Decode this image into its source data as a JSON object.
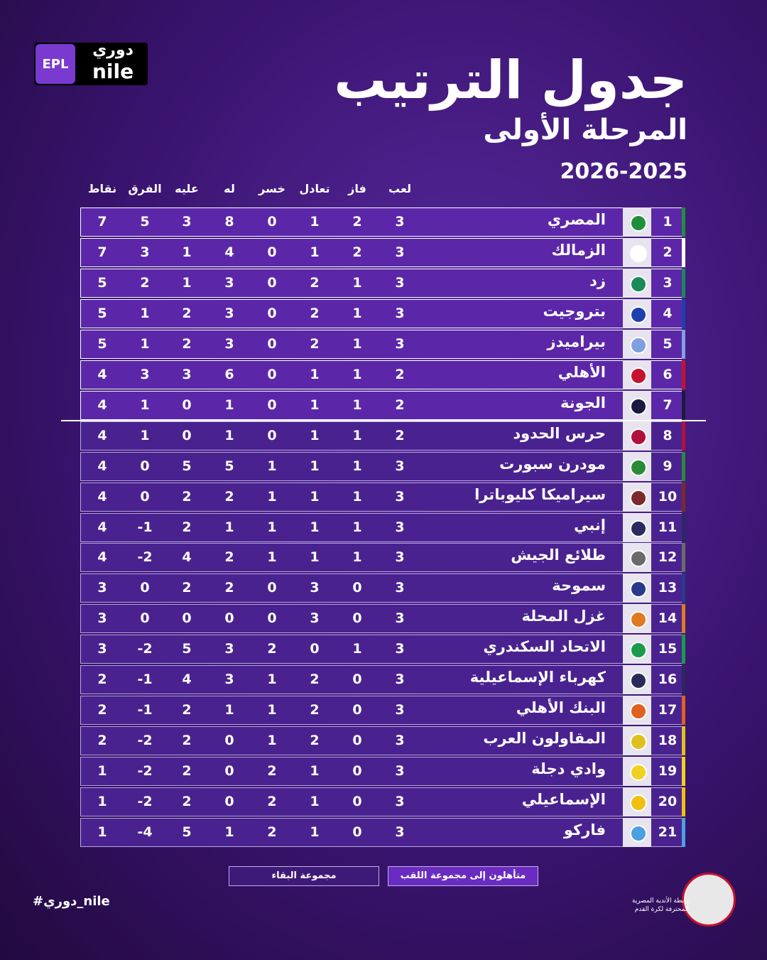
{
  "header": {
    "brand_epl": "EPL",
    "brand_name": "دوري",
    "brand_nile": "nile",
    "title": "جدول الترتيب",
    "subtitle": "المرحلة الأولى",
    "season": "2026-2025"
  },
  "table": {
    "columns": [
      "لعب",
      "فاز",
      "تعادل",
      "خسر",
      "له",
      "عليه",
      "الفرق",
      "نقاط"
    ],
    "rows": [
      {
        "rank": 1,
        "team": "المصري",
        "color": "#1e8f3a",
        "stats": [
          3,
          2,
          1,
          0,
          8,
          3,
          5,
          7
        ]
      },
      {
        "rank": 2,
        "team": "الزمالك",
        "color": "#ffffff",
        "stats": [
          3,
          2,
          1,
          0,
          4,
          1,
          3,
          7
        ]
      },
      {
        "rank": 3,
        "team": "زد",
        "color": "#1a8a5a",
        "stats": [
          3,
          1,
          2,
          0,
          3,
          1,
          2,
          5
        ]
      },
      {
        "rank": 4,
        "team": "بتروجيت",
        "color": "#1f3fb0",
        "stats": [
          3,
          1,
          2,
          0,
          3,
          2,
          1,
          5
        ]
      },
      {
        "rank": 5,
        "team": "بيراميدز",
        "color": "#7f9fe0",
        "stats": [
          3,
          1,
          2,
          0,
          3,
          2,
          1,
          5
        ]
      },
      {
        "rank": 6,
        "team": "الأهلي",
        "color": "#c4122f",
        "stats": [
          2,
          1,
          1,
          0,
          6,
          3,
          3,
          4
        ]
      },
      {
        "rank": 7,
        "team": "الجونة",
        "color": "#1a1a40",
        "stats": [
          2,
          1,
          1,
          0,
          1,
          0,
          1,
          4
        ]
      },
      {
        "rank": 8,
        "team": "حرس الحدود",
        "color": "#b0103a",
        "stats": [
          2,
          1,
          1,
          0,
          1,
          0,
          1,
          4
        ]
      },
      {
        "rank": 9,
        "team": "مودرن سبورت",
        "color": "#2a8a3a",
        "stats": [
          3,
          1,
          1,
          1,
          5,
          5,
          0,
          4
        ]
      },
      {
        "rank": 10,
        "team": "سيراميكا كليوباترا",
        "color": "#7a2a2a",
        "stats": [
          3,
          1,
          1,
          1,
          2,
          2,
          0,
          4
        ]
      },
      {
        "rank": 11,
        "team": "إنبي",
        "color": "#2a2a60",
        "stats": [
          3,
          1,
          1,
          1,
          1,
          2,
          -1,
          4
        ]
      },
      {
        "rank": 12,
        "team": "طلائع الجيش",
        "color": "#6a6a6a",
        "stats": [
          3,
          1,
          1,
          1,
          2,
          4,
          -2,
          4
        ]
      },
      {
        "rank": 13,
        "team": "سموحة",
        "color": "#2a3a8a",
        "stats": [
          3,
          0,
          3,
          0,
          2,
          2,
          0,
          3
        ]
      },
      {
        "rank": 14,
        "team": "غزل المحلة",
        "color": "#e07a20",
        "stats": [
          3,
          0,
          3,
          0,
          0,
          0,
          0,
          3
        ]
      },
      {
        "rank": 15,
        "team": "الاتحاد السكندري",
        "color": "#1a9a4a",
        "stats": [
          3,
          1,
          0,
          2,
          3,
          5,
          -2,
          3
        ]
      },
      {
        "rank": 16,
        "team": "كهرباء الإسماعيلية",
        "color": "#2a2a5a",
        "stats": [
          3,
          0,
          2,
          1,
          3,
          4,
          -1,
          2
        ]
      },
      {
        "rank": 17,
        "team": "البنك الأهلي",
        "color": "#e06020",
        "stats": [
          3,
          0,
          2,
          1,
          1,
          2,
          -1,
          2
        ]
      },
      {
        "rank": 18,
        "team": "المقاولون العرب",
        "color": "#e0c020",
        "stats": [
          3,
          0,
          2,
          1,
          0,
          2,
          -2,
          2
        ]
      },
      {
        "rank": 19,
        "team": "وادي دجلة",
        "color": "#f0d020",
        "stats": [
          3,
          0,
          1,
          2,
          0,
          2,
          -2,
          1
        ]
      },
      {
        "rank": 20,
        "team": "الإسماعيلي",
        "color": "#f0c010",
        "stats": [
          3,
          0,
          1,
          2,
          0,
          2,
          -2,
          1
        ]
      },
      {
        "rank": 21,
        "team": "فاركو",
        "color": "#4aa0e0",
        "stats": [
          3,
          0,
          1,
          2,
          1,
          5,
          -4,
          1
        ]
      }
    ]
  },
  "legend": {
    "title_group": "متأهلون إلى مجموعة اللقب",
    "relegation_group": "مجموعة البقاء"
  },
  "footer": {
    "hashtag": "#دوري_nile",
    "federation": "رابطة الأندية المصرية المحترفة لكرة القدم"
  }
}
